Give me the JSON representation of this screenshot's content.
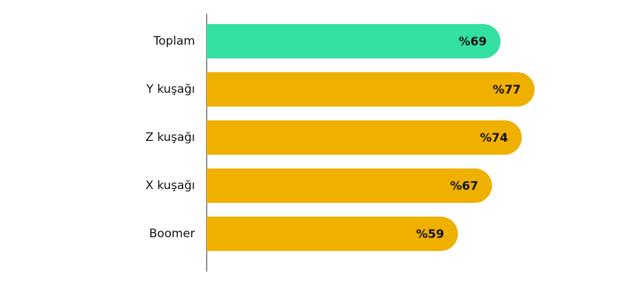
{
  "chart_data": {
    "type": "bar",
    "orientation": "horizontal",
    "categories": [
      "Toplam",
      "Y kuşağı",
      "Z kuşağı",
      "X kuşağı",
      "Boomer"
    ],
    "values": [
      69,
      77,
      74,
      67,
      59
    ],
    "value_labels": [
      "%69",
      "%77",
      "%74",
      "%67",
      "%59"
    ],
    "colors": [
      "#34e0a1",
      "#f0b000",
      "#f0b000",
      "#f0b000",
      "#f0b000"
    ]
  }
}
